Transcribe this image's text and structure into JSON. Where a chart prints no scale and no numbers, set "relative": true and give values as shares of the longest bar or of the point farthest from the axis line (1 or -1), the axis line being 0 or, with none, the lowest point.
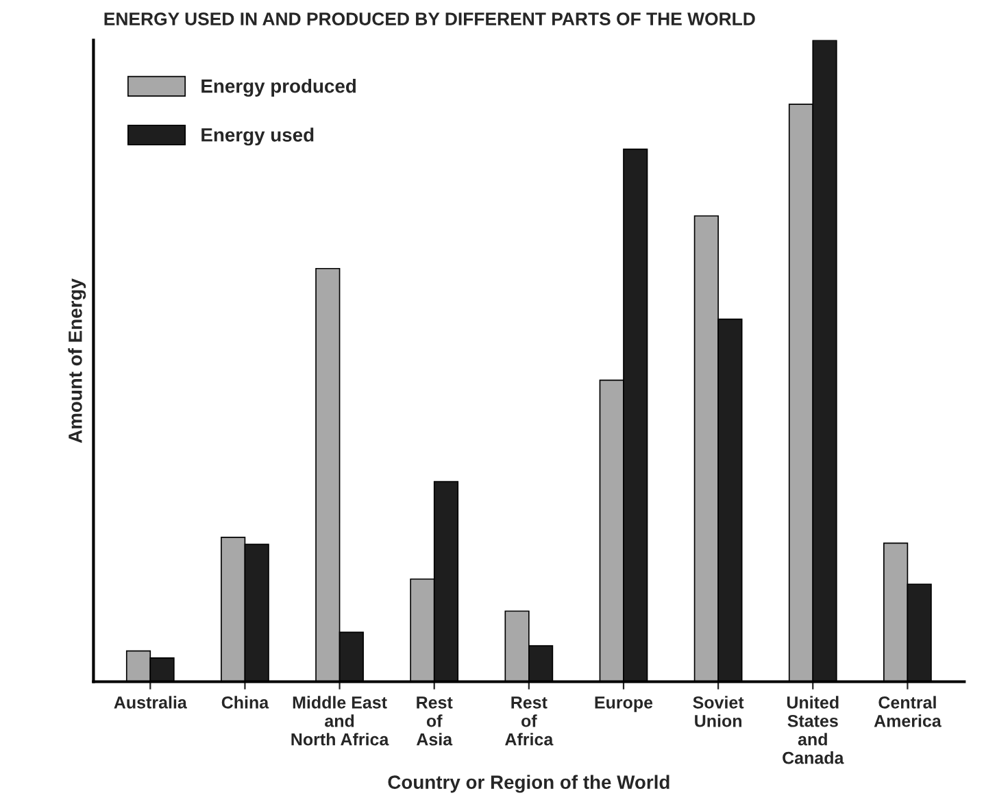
{
  "chart_data": {
    "type": "bar",
    "title": "ENERGY USED IN AND PRODUCED BY DIFFERENT PARTS OF THE WORLD",
    "xlabel": "Country or Region of the World",
    "ylabel": "Amount of Energy",
    "relative": true,
    "legend": "top left",
    "grid": false,
    "categories": [
      "Australia",
      "China",
      "Middle East\nand\nNorth Africa",
      "Rest\nof\nAsia",
      "Rest\nof\nAfrica",
      "Europe",
      "Soviet\nUnion",
      "United\nStates\nand\nCanada",
      "Central\nAmerica"
    ],
    "series": [
      {
        "name": "Energy produced",
        "color": "#a8a8a8",
        "values": [
          0.048,
          0.225,
          0.644,
          0.16,
          0.11,
          0.47,
          0.726,
          0.9,
          0.216
        ]
      },
      {
        "name": "Energy used",
        "color": "#1e1e1e",
        "values": [
          0.037,
          0.214,
          0.077,
          0.312,
          0.056,
          0.83,
          0.565,
          1,
          0.152
        ]
      }
    ]
  }
}
